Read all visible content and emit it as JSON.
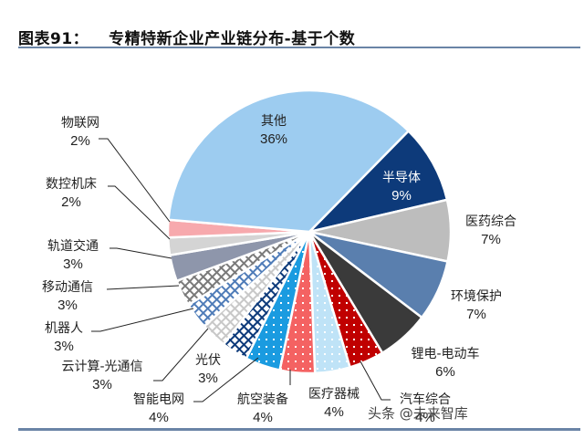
{
  "title": {
    "prefix": "图表91：",
    "text": "专精特新企业产业链分布-基于个数"
  },
  "watermark": "头条 @未来智库",
  "colors": {
    "rule": "#6a84a6"
  },
  "chart_data": {
    "type": "pie",
    "title": "专精特新企业产业链分布-基于个数",
    "unit": "%",
    "start_angle_deg": 44.5,
    "direction": "clockwise",
    "slices": [
      {
        "label": "半导体",
        "value": 9,
        "color": "#0d3a7a",
        "pattern": "solid"
      },
      {
        "label": "医药综合",
        "value": 7,
        "color": "#bdbdbd",
        "pattern": "solid"
      },
      {
        "label": "环境保护",
        "value": 7,
        "color": "#5a7fae",
        "pattern": "solid"
      },
      {
        "label": "锂电-电动车",
        "value": 6,
        "color": "#3a3a3a",
        "pattern": "solid"
      },
      {
        "label": "汽车综合",
        "value": 4,
        "color": "#c00000",
        "pattern": "dots"
      },
      {
        "label": "医疗器械",
        "value": 4,
        "color": "#bfe3f7",
        "pattern": "dots"
      },
      {
        "label": "航空装备",
        "value": 4,
        "color": "#f46262",
        "pattern": "dots"
      },
      {
        "label": "智能电网",
        "value": 4,
        "color": "#1a9be0",
        "pattern": "dots"
      },
      {
        "label": "光伏",
        "value": 3,
        "color": "#0d3a7a",
        "pattern": "grid"
      },
      {
        "label": "云计算-光通信",
        "value": 3,
        "color": "#c8c8c8",
        "pattern": "grid"
      },
      {
        "label": "机器人",
        "value": 3,
        "color": "#4f7cb8",
        "pattern": "grid"
      },
      {
        "label": "移动通信",
        "value": 3,
        "color": "#7a7a7a",
        "pattern": "grid"
      },
      {
        "label": "轨道交通",
        "value": 3,
        "color": "#8e96ab",
        "pattern": "solid"
      },
      {
        "label": "数控机床",
        "value": 2,
        "color": "#d4d4d4",
        "pattern": "solid"
      },
      {
        "label": "物联网",
        "value": 2,
        "color": "#f7a9ad",
        "pattern": "solid"
      },
      {
        "label": "其他",
        "value": 36,
        "color": "#9dccf0",
        "pattern": "solid"
      }
    ]
  },
  "labels": [
    {
      "name": "其他",
      "pct": "36%"
    },
    {
      "name": "半导体",
      "pct": "9%"
    },
    {
      "name": "医药综合",
      "pct": "7%"
    },
    {
      "name": "环境保护",
      "pct": "7%"
    },
    {
      "name": "锂电-电动车",
      "pct": "6%"
    },
    {
      "name": "汽车综合",
      "pct": "4%"
    },
    {
      "name": "医疗器械",
      "pct": "4%"
    },
    {
      "name": "航空装备",
      "pct": "4%"
    },
    {
      "name": "智能电网",
      "pct": "4%"
    },
    {
      "name": "光伏",
      "pct": "3%"
    },
    {
      "name": "云计算-光通信",
      "pct": "3%"
    },
    {
      "name": "机器人",
      "pct": "3%"
    },
    {
      "name": "移动通信",
      "pct": "3%"
    },
    {
      "name": "轨道交通",
      "pct": "3%"
    },
    {
      "name": "数控机床",
      "pct": "2%"
    },
    {
      "name": "物联网",
      "pct": "2%"
    }
  ]
}
